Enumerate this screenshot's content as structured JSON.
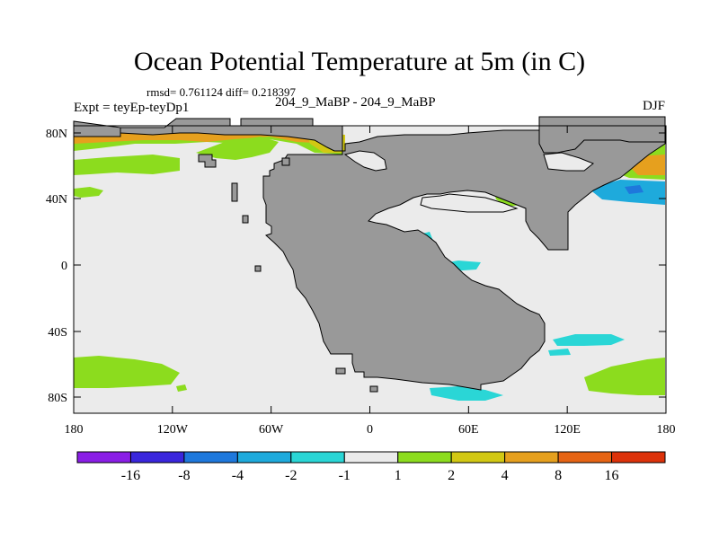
{
  "title": "Ocean Potential Temperature at 5m (in C)",
  "stats_text": "rmsd= 0.761124 diff= 0.218397",
  "left_label": "Expt = teyEp-teyDp1",
  "center_label": "204_9_MaBP - 204_9_MaBP",
  "season_label": "DJF",
  "axes": {
    "x_ticks": [
      "180",
      "120W",
      "60W",
      "0",
      "60E",
      "120E",
      "180"
    ],
    "y_ticks": [
      "80N",
      "40N",
      "0",
      "40S",
      "80S"
    ]
  },
  "colorbar": {
    "labels": [
      "-16",
      "-8",
      "-4",
      "-2",
      "-1",
      "1",
      "2",
      "4",
      "8",
      "16"
    ],
    "colors": [
      "#8a1ee6",
      "#3a26dc",
      "#1e78dc",
      "#1eaadc",
      "#2ad6d6",
      "#ebebeb",
      "#8cdc1e",
      "#d2c814",
      "#e6a01e",
      "#e66414",
      "#dc320a"
    ]
  },
  "colors": {
    "land": "#999999",
    "ocean_neutral": "#ebebeb",
    "green": "#8cdc1e",
    "yellow": "#d2c814",
    "orange": "#e6a01e",
    "cyan": "#2ad6d6",
    "lightblue": "#1eaadc",
    "blue": "#1e78dc"
  }
}
